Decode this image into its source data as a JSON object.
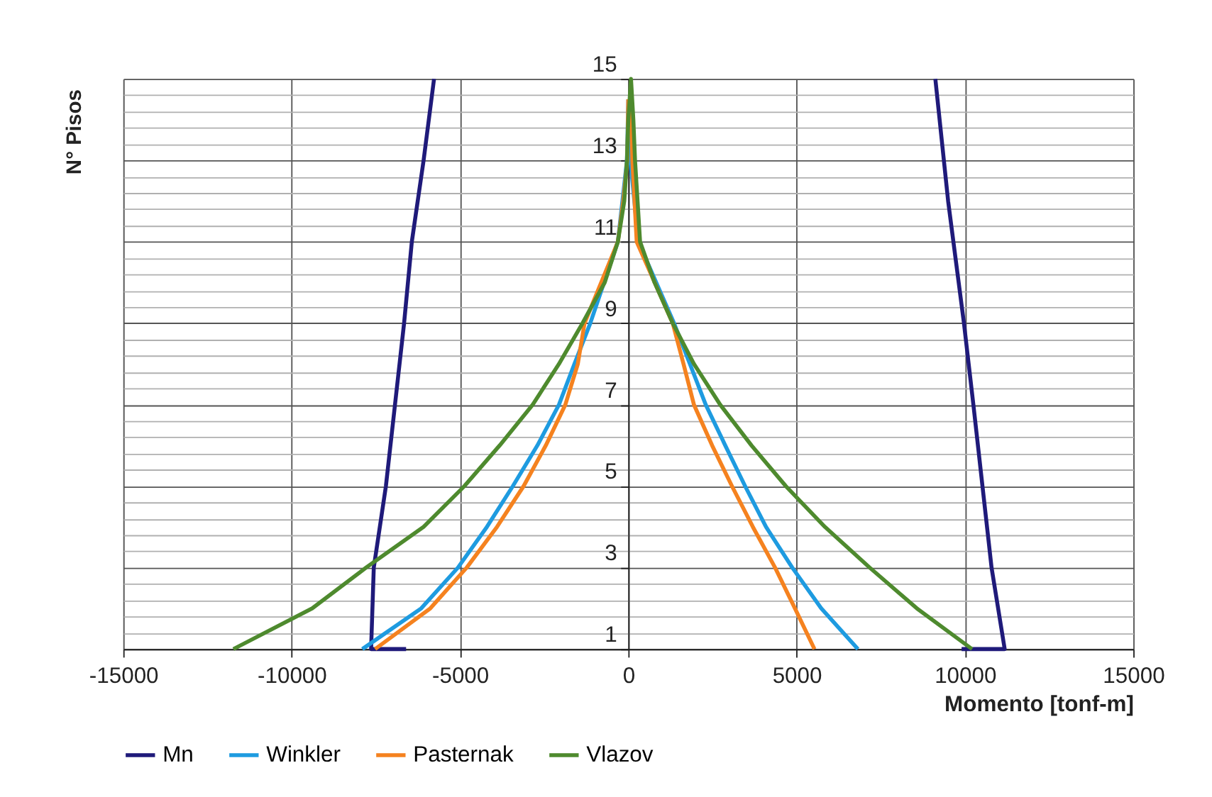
{
  "chart_data": {
    "type": "line",
    "xlabel": "Momento [tonf-m]",
    "ylabel": "N° Pisos",
    "xlim": [
      -15000,
      15000
    ],
    "xticks": [
      -15000,
      -10000,
      -5000,
      0,
      5000,
      10000,
      15000
    ],
    "ylim": [
      1,
      15
    ],
    "yticks": [
      1,
      {
        "value": 1.4,
        "label": null
      },
      {
        "value": 1.8,
        "label": null
      },
      {
        "value": 2.2,
        "label": null
      },
      {
        "value": 2.6,
        "label": null
      },
      3,
      {
        "value": 3.4,
        "label": null
      },
      {
        "value": 3.8,
        "label": null
      },
      {
        "value": 4.2,
        "label": null
      },
      {
        "value": 4.6,
        "label": null
      },
      5,
      {
        "value": 5.4,
        "label": null
      },
      {
        "value": 5.8,
        "label": null
      },
      {
        "value": 6.2,
        "label": null
      },
      {
        "value": 6.6,
        "label": null
      },
      7,
      {
        "value": 7.4,
        "label": null
      },
      {
        "value": 7.8,
        "label": null
      },
      {
        "value": 8.2,
        "label": null
      },
      {
        "value": 8.6,
        "label": null
      },
      9,
      {
        "value": 9.4,
        "label": null
      },
      {
        "value": 9.8,
        "label": null
      },
      {
        "value": 10.2,
        "label": null
      },
      {
        "value": 10.6,
        "label": null
      },
      11,
      {
        "value": 11.4,
        "label": null
      },
      {
        "value": 11.8,
        "label": null
      },
      {
        "value": 12.2,
        "label": null
      },
      {
        "value": 12.6,
        "label": null
      },
      13,
      {
        "value": 13.4,
        "label": null
      },
      {
        "value": 13.8,
        "label": null
      },
      {
        "value": 14.2,
        "label": null
      },
      {
        "value": 14.6,
        "label": null
      },
      15
    ],
    "grid": true,
    "legend": "bottom",
    "series": [
      {
        "name": "Mn",
        "color": "#1f1a7a",
        "x": [
          -6600,
          -7640,
          -7560,
          -7200,
          -6930,
          -6660,
          -6430,
          -6080,
          -5770,
          null,
          9120,
          9500,
          9970,
          10250,
          10520,
          10790,
          11180,
          9900
        ],
        "values": [
          1,
          1,
          3,
          5,
          7,
          9,
          11,
          13,
          15,
          null,
          15,
          12,
          9,
          7,
          5,
          3,
          1,
          1
        ]
      },
      {
        "name": "Winkler",
        "color": "#1e9be0",
        "x": [
          -7900,
          -6150,
          -5060,
          -4200,
          -3430,
          -2700,
          -2060,
          -1600,
          -1130,
          -310,
          -40,
          0,
          null,
          0,
          60,
          300,
          1360,
          1830,
          2300,
          2880,
          3470,
          4090,
          4870,
          5730,
          6820
        ],
        "values": [
          1,
          2,
          3,
          4,
          5,
          6,
          7,
          8,
          9,
          11,
          13,
          14.5,
          null,
          14.5,
          13,
          11,
          9,
          8,
          7,
          6,
          5,
          4,
          3,
          2,
          1
        ]
      },
      {
        "name": "Pasternak",
        "color": "#f5821f",
        "x": [
          -7520,
          -5880,
          -4800,
          -3900,
          -3110,
          -2450,
          -1870,
          -1500,
          -1300,
          -310,
          -150,
          -30,
          0,
          null,
          80,
          120,
          250,
          1320,
          1640,
          1950,
          2490,
          3080,
          3700,
          4360,
          4950,
          5530
        ],
        "values": [
          1,
          2,
          3,
          4,
          5,
          6,
          7,
          8,
          9,
          11,
          12,
          13,
          14.5,
          null,
          14.5,
          13,
          11,
          9,
          8,
          7,
          6,
          5,
          4,
          3,
          2,
          1
        ]
      },
      {
        "name": "Vlazov",
        "color": "#4e8a2e",
        "x": [
          -11730,
          -9390,
          -7790,
          -6080,
          -4870,
          -3820,
          -2840,
          -2060,
          -1360,
          -700,
          -310,
          -120,
          -40,
          0,
          80,
          150,
          200,
          350,
          780,
          1320,
          1950,
          2730,
          3660,
          4680,
          5840,
          7170,
          8570,
          10210
        ],
        "values": [
          1,
          2,
          3,
          4,
          5,
          6,
          7,
          8,
          9,
          10,
          11,
          12,
          13,
          14,
          15,
          14,
          13,
          11,
          10,
          9,
          8,
          7,
          6,
          5,
          4,
          3,
          2,
          1
        ]
      }
    ]
  }
}
